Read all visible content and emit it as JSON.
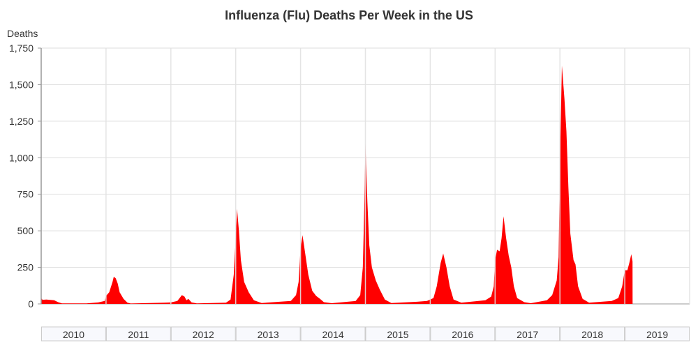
{
  "chart_data": {
    "type": "area",
    "title": "Influenza (Flu) Deaths Per Week in the US",
    "ylabel": "Deaths",
    "xlabel": "",
    "ylim": [
      0,
      1750
    ],
    "xlim": [
      2010,
      2020
    ],
    "yticks": [
      0,
      250,
      500,
      750,
      1000,
      1250,
      1500,
      1750
    ],
    "ytick_labels": [
      "0",
      "250",
      "500",
      "750",
      "1,000",
      "1,250",
      "1,500",
      "1,750"
    ],
    "xtick_labels": [
      "2010",
      "2011",
      "2012",
      "2013",
      "2014",
      "2015",
      "2016",
      "2017",
      "2018",
      "2019"
    ],
    "grid": true,
    "color": "#ff0000",
    "series": [
      {
        "name": "Deaths",
        "points": [
          [
            2010.0,
            40
          ],
          [
            2010.02,
            28
          ],
          [
            2010.08,
            30
          ],
          [
            2010.2,
            25
          ],
          [
            2010.26,
            12
          ],
          [
            2010.32,
            4
          ],
          [
            2010.7,
            4
          ],
          [
            2010.88,
            10
          ],
          [
            2010.98,
            20
          ],
          [
            2011.0,
            55
          ],
          [
            2011.05,
            80
          ],
          [
            2011.1,
            150
          ],
          [
            2011.12,
            186
          ],
          [
            2011.15,
            175
          ],
          [
            2011.18,
            140
          ],
          [
            2011.21,
            80
          ],
          [
            2011.27,
            35
          ],
          [
            2011.33,
            8
          ],
          [
            2011.38,
            3
          ],
          [
            2011.9,
            8
          ],
          [
            2012.0,
            10
          ],
          [
            2012.1,
            20
          ],
          [
            2012.17,
            60
          ],
          [
            2012.21,
            50
          ],
          [
            2012.24,
            25
          ],
          [
            2012.27,
            35
          ],
          [
            2012.32,
            10
          ],
          [
            2012.4,
            4
          ],
          [
            2012.85,
            8
          ],
          [
            2012.92,
            30
          ],
          [
            2012.97,
            200
          ],
          [
            2013.0,
            450
          ],
          [
            2013.02,
            650
          ],
          [
            2013.05,
            500
          ],
          [
            2013.08,
            300
          ],
          [
            2013.13,
            150
          ],
          [
            2013.2,
            80
          ],
          [
            2013.28,
            25
          ],
          [
            2013.4,
            6
          ],
          [
            2013.85,
            20
          ],
          [
            2013.93,
            60
          ],
          [
            2013.97,
            150
          ],
          [
            2014.0,
            380
          ],
          [
            2014.03,
            470
          ],
          [
            2014.07,
            350
          ],
          [
            2014.12,
            200
          ],
          [
            2014.18,
            90
          ],
          [
            2014.24,
            55
          ],
          [
            2014.3,
            35
          ],
          [
            2014.36,
            12
          ],
          [
            2014.48,
            5
          ],
          [
            2014.85,
            20
          ],
          [
            2014.92,
            60
          ],
          [
            2014.96,
            250
          ],
          [
            2014.985,
            700
          ],
          [
            2015.0,
            1100
          ],
          [
            2015.03,
            700
          ],
          [
            2015.06,
            400
          ],
          [
            2015.1,
            250
          ],
          [
            2015.16,
            160
          ],
          [
            2015.22,
            100
          ],
          [
            2015.3,
            30
          ],
          [
            2015.4,
            6
          ],
          [
            2015.8,
            15
          ],
          [
            2015.95,
            20
          ],
          [
            2016.05,
            40
          ],
          [
            2016.1,
            120
          ],
          [
            2016.16,
            280
          ],
          [
            2016.2,
            345
          ],
          [
            2016.25,
            250
          ],
          [
            2016.3,
            120
          ],
          [
            2016.36,
            30
          ],
          [
            2016.48,
            8
          ],
          [
            2016.85,
            25
          ],
          [
            2016.94,
            50
          ],
          [
            2016.98,
            120
          ],
          [
            2017.0,
            300
          ],
          [
            2017.03,
            370
          ],
          [
            2017.07,
            360
          ],
          [
            2017.1,
            450
          ],
          [
            2017.13,
            600
          ],
          [
            2017.17,
            450
          ],
          [
            2017.21,
            330
          ],
          [
            2017.25,
            250
          ],
          [
            2017.29,
            120
          ],
          [
            2017.34,
            40
          ],
          [
            2017.45,
            12
          ],
          [
            2017.55,
            5
          ],
          [
            2017.8,
            25
          ],
          [
            2017.88,
            60
          ],
          [
            2017.95,
            160
          ],
          [
            2017.98,
            320
          ],
          [
            2018.0,
            950
          ],
          [
            2018.03,
            1630
          ],
          [
            2018.07,
            1400
          ],
          [
            2018.1,
            1180
          ],
          [
            2018.13,
            800
          ],
          [
            2018.16,
            480
          ],
          [
            2018.21,
            300
          ],
          [
            2018.24,
            270
          ],
          [
            2018.28,
            120
          ],
          [
            2018.35,
            35
          ],
          [
            2018.45,
            8
          ],
          [
            2018.8,
            20
          ],
          [
            2018.9,
            40
          ],
          [
            2018.96,
            120
          ],
          [
            2019.0,
            230
          ],
          [
            2019.04,
            230
          ],
          [
            2019.07,
            280
          ],
          [
            2019.1,
            340
          ],
          [
            2019.12,
            290
          ],
          [
            2019.121,
            0
          ]
        ]
      }
    ]
  }
}
